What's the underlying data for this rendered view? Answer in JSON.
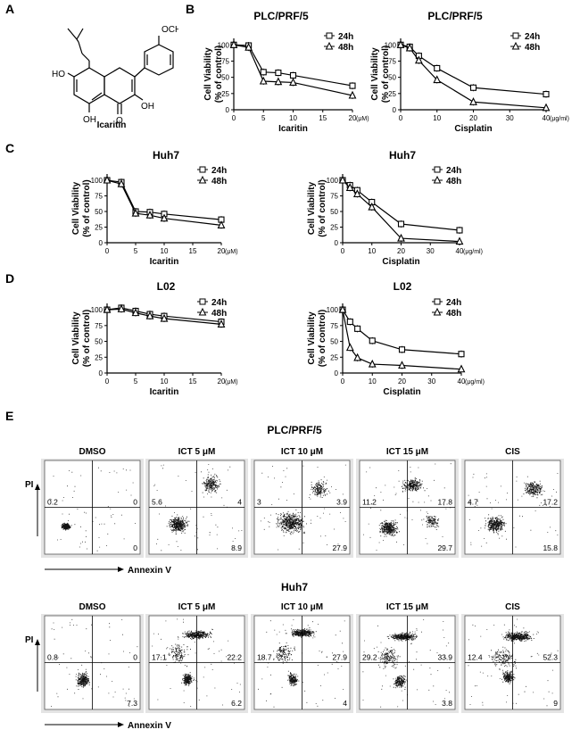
{
  "figure": {
    "panel_a": "A",
    "panel_b": "B",
    "panel_c": "C",
    "panel_d": "D",
    "panel_e": "E",
    "compound_name": "Icaritin",
    "structure_labels": {
      "och3": "OCH3",
      "ho": "HO",
      "oh_bottom": "OH",
      "o_carbonyl": "O",
      "oh_right": "OH"
    }
  },
  "chart_data": [
    {
      "id": "b1",
      "type": "line",
      "title": "PLC/PRF/5",
      "xlabel": "Icaritin",
      "xunit": "(μM)",
      "ylabel": [
        "Cell Viability",
        "(% of control)"
      ],
      "xlim": [
        0,
        20
      ],
      "ylim": [
        0,
        110
      ],
      "xticks": [
        "0",
        "5",
        "10",
        "15",
        "20"
      ],
      "yticks": [
        "0",
        "25",
        "50",
        "75",
        "100"
      ],
      "legend": [
        "24h",
        "48h"
      ],
      "series": [
        {
          "name": "24h",
          "x": [
            0,
            2.5,
            5,
            7.5,
            10,
            20
          ],
          "values": [
            100,
            99,
            58,
            57,
            53,
            37
          ]
        },
        {
          "name": "48h",
          "x": [
            0,
            2.5,
            5,
            7.5,
            10,
            20
          ],
          "values": [
            100,
            96,
            44,
            43,
            42,
            22
          ]
        }
      ]
    },
    {
      "id": "b2",
      "type": "line",
      "title": "PLC/PRF/5",
      "xlabel": "Cisplatin",
      "xunit": "(μg/ml)",
      "ylabel": [
        "Cell Viability",
        "(% of control)"
      ],
      "xlim": [
        0,
        40
      ],
      "ylim": [
        0,
        110
      ],
      "xticks": [
        "0",
        "10",
        "20",
        "30",
        "40"
      ],
      "yticks": [
        "0",
        "25",
        "50",
        "75",
        "100"
      ],
      "legend": [
        "24h",
        "48h"
      ],
      "series": [
        {
          "name": "24h",
          "x": [
            0,
            2.5,
            5,
            10,
            20,
            40
          ],
          "values": [
            100,
            97,
            83,
            64,
            34,
            24
          ]
        },
        {
          "name": "48h",
          "x": [
            0,
            2.5,
            5,
            10,
            20,
            40
          ],
          "values": [
            100,
            95,
            76,
            46,
            12,
            3
          ]
        }
      ]
    },
    {
      "id": "c1",
      "type": "line",
      "title": "Huh7",
      "xlabel": "Icaritin",
      "xunit": "(μM)",
      "ylabel": [
        "Cell Viability",
        "(% of control)"
      ],
      "xlim": [
        0,
        20
      ],
      "ylim": [
        0,
        110
      ],
      "xticks": [
        "0",
        "5",
        "10",
        "15",
        "20"
      ],
      "yticks": [
        "0",
        "25",
        "50",
        "75",
        "100"
      ],
      "legend": [
        "24h",
        "48h"
      ],
      "series": [
        {
          "name": "24h",
          "x": [
            0,
            2.5,
            5,
            7.5,
            10,
            20
          ],
          "values": [
            100,
            97,
            50,
            49,
            46,
            37
          ]
        },
        {
          "name": "48h",
          "x": [
            0,
            2.5,
            5,
            7.5,
            10,
            20
          ],
          "values": [
            100,
            94,
            47,
            44,
            39,
            28
          ]
        }
      ]
    },
    {
      "id": "c2",
      "type": "line",
      "title": "Huh7",
      "xlabel": "Cisplatin",
      "xunit": "(μg/ml)",
      "ylabel": [
        "Cell Viability",
        "(% of control)"
      ],
      "xlim": [
        0,
        40
      ],
      "ylim": [
        0,
        110
      ],
      "xticks": [
        "0",
        "10",
        "20",
        "30",
        "40"
      ],
      "yticks": [
        "0",
        "25",
        "50",
        "75",
        "100"
      ],
      "legend": [
        "24h",
        "48h"
      ],
      "series": [
        {
          "name": "24h",
          "x": [
            0,
            2.5,
            5,
            10,
            20,
            40
          ],
          "values": [
            100,
            92,
            84,
            65,
            30,
            20
          ]
        },
        {
          "name": "48h",
          "x": [
            0,
            2.5,
            5,
            10,
            20,
            40
          ],
          "values": [
            100,
            88,
            78,
            57,
            7,
            2
          ]
        }
      ]
    },
    {
      "id": "d1",
      "type": "line",
      "title": "L02",
      "xlabel": "Icaritin",
      "xunit": "(μM)",
      "ylabel": [
        "Cell Viability",
        "(% of control)"
      ],
      "xlim": [
        0,
        20
      ],
      "ylim": [
        0,
        110
      ],
      "xticks": [
        "0",
        "5",
        "10",
        "15",
        "20"
      ],
      "yticks": [
        "0",
        "25",
        "50",
        "75",
        "100"
      ],
      "legend": [
        "24h",
        "48h"
      ],
      "series": [
        {
          "name": "24h",
          "x": [
            0,
            2.5,
            5,
            7.5,
            10,
            20
          ],
          "values": [
            100,
            103,
            98,
            93,
            90,
            81
          ]
        },
        {
          "name": "48h",
          "x": [
            0,
            2.5,
            5,
            7.5,
            10,
            20
          ],
          "values": [
            100,
            101,
            95,
            90,
            86,
            77
          ]
        }
      ]
    },
    {
      "id": "d2",
      "type": "line",
      "title": "L02",
      "xlabel": "Cisplatin",
      "xunit": "(μg/ml)",
      "ylabel": [
        "Cell Viability",
        "(% of control)"
      ],
      "xlim": [
        0,
        40
      ],
      "ylim": [
        0,
        110
      ],
      "xticks": [
        "0",
        "10",
        "20",
        "30",
        "40"
      ],
      "yticks": [
        "0",
        "25",
        "50",
        "75",
        "100"
      ],
      "legend": [
        "24h",
        "48h"
      ],
      "series": [
        {
          "name": "24h",
          "x": [
            0,
            2.5,
            5,
            10,
            20,
            40
          ],
          "values": [
            100,
            81,
            70,
            51,
            37,
            30
          ]
        },
        {
          "name": "48h",
          "x": [
            0,
            2.5,
            5,
            10,
            20,
            40
          ],
          "values": [
            100,
            40,
            24,
            14,
            12,
            6
          ]
        }
      ]
    },
    {
      "id": "e1",
      "type": "scatter",
      "cell_line": "PLC/PRF/5",
      "xlabel": "Annexin V",
      "ylabel": "PI",
      "conditions": [
        {
          "label": "DMSO",
          "q_ul": "0.2",
          "q_ur": "0",
          "q_lr": "0"
        },
        {
          "label": "ICT 5 μM",
          "q_ul": "5.6",
          "q_ur": "4",
          "q_lr": "8.9"
        },
        {
          "label": "ICT 10 μM",
          "q_ul": "3",
          "q_ur": "3.9",
          "q_lr": "27.9"
        },
        {
          "label": "ICT 15 μM",
          "q_ul": "11.2",
          "q_ur": "17.8",
          "q_lr": "29.7"
        },
        {
          "label": "CIS",
          "q_ul": "4.7",
          "q_ur": "17.2",
          "q_lr": "15.8"
        }
      ]
    },
    {
      "id": "e2",
      "type": "scatter",
      "cell_line": "Huh7",
      "xlabel": "Annexin V",
      "ylabel": "PI",
      "conditions": [
        {
          "label": "DMSO",
          "q_ul": "0.8",
          "q_ur": "0",
          "q_lr": "7.3"
        },
        {
          "label": "ICT 5 μM",
          "q_ul": "17.1",
          "q_ur": "22.2",
          "q_lr": "6.2"
        },
        {
          "label": "ICT 10 μM",
          "q_ul": "18.7",
          "q_ur": "27.9",
          "q_lr": "4"
        },
        {
          "label": "ICT 15 μM",
          "q_ul": "29.2",
          "q_ur": "33.9",
          "q_lr": "3.8"
        },
        {
          "label": "CIS",
          "q_ul": "12.4",
          "q_ur": "52.3",
          "q_lr": "9"
        }
      ]
    }
  ]
}
